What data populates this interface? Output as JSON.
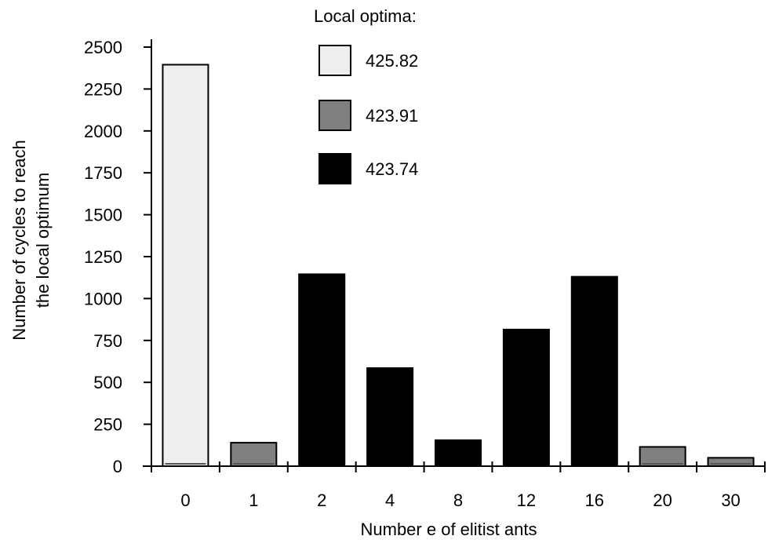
{
  "chart_data": {
    "type": "bar",
    "title": "",
    "xlabel": "Number e of elitist ants",
    "ylabel": [
      "Number of cycles to reach",
      "the local optimum"
    ],
    "categories": [
      "0",
      "1",
      "2",
      "4",
      "8",
      "12",
      "16",
      "20",
      "30"
    ],
    "values": [
      2395,
      140,
      1145,
      585,
      155,
      815,
      1130,
      115,
      50
    ],
    "bar_groups": [
      "425.82",
      "423.91",
      "423.74",
      "423.74",
      "423.74",
      "423.74",
      "423.74",
      "423.91",
      "423.91"
    ],
    "ylim": [
      0,
      2500
    ],
    "yticks": [
      0,
      250,
      500,
      750,
      1000,
      1250,
      1500,
      1750,
      2000,
      2250,
      2500
    ],
    "ytick_labels": [
      "0",
      "250",
      "500",
      "750",
      "1000",
      "1250",
      "1500",
      "1750",
      "2000",
      "2250",
      "2500"
    ],
    "grid": false,
    "legend": {
      "title": "Local optima:",
      "placement": "top-center",
      "entries": [
        {
          "label": "425.82",
          "color": "#eeeeee"
        },
        {
          "label": "423.91",
          "color": "#808080"
        },
        {
          "label": "423.74",
          "color": "#000000"
        }
      ]
    }
  }
}
